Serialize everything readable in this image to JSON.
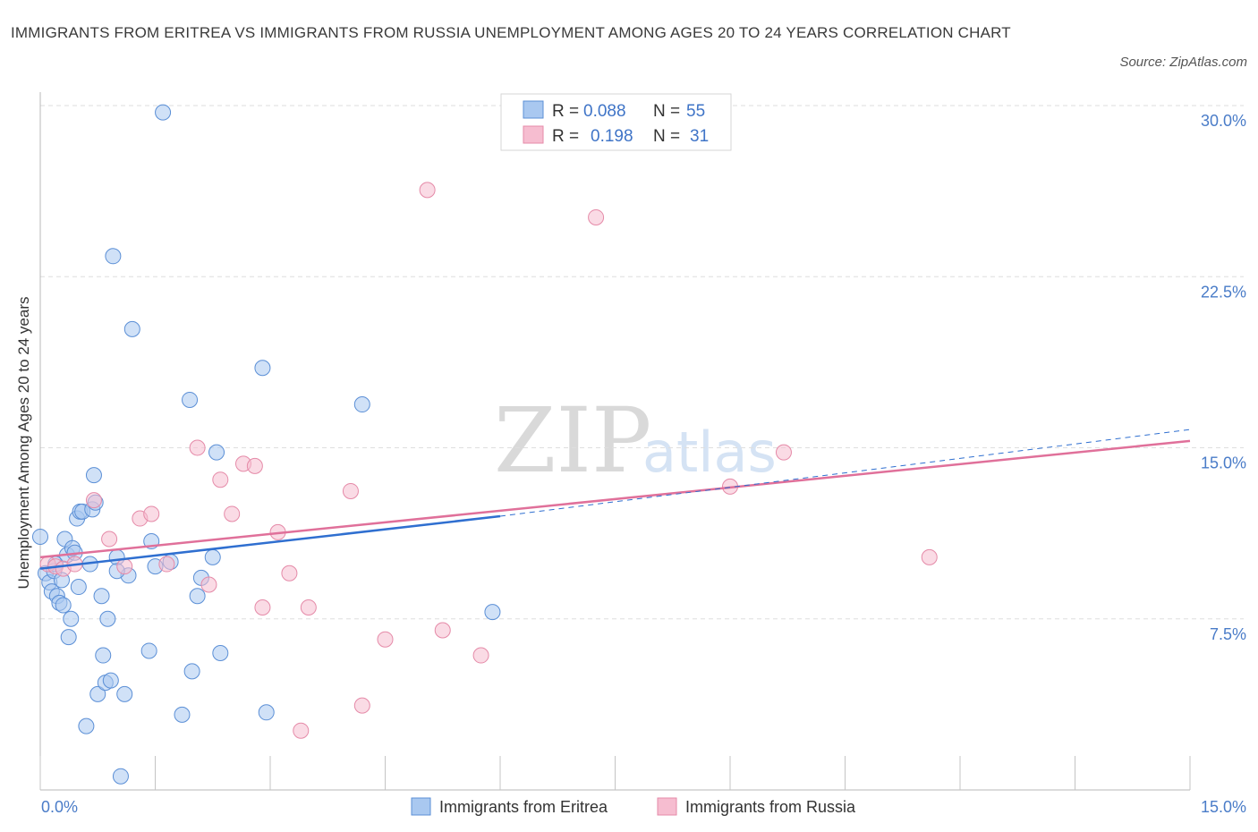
{
  "title": "IMMIGRANTS FROM ERITREA VS IMMIGRANTS FROM RUSSIA UNEMPLOYMENT AMONG AGES 20 TO 24 YEARS CORRELATION CHART",
  "source": "Source: ZipAtlas.com",
  "watermark": {
    "zip": "ZIP",
    "atlas": "atlas"
  },
  "legend": {
    "r_label": "R =",
    "n_label": "N =",
    "rows": [
      {
        "r": "0.088",
        "n": "55",
        "color": "#a9c8f0"
      },
      {
        "r": "0.198",
        "n": "31",
        "color": "#f6bdd0"
      }
    ]
  },
  "colors": {
    "eritrea_fill": "#a9c8f0",
    "eritrea_stroke": "#5b8fd6",
    "eritrea_line": "#2f6fd0",
    "russia_fill": "#f6bdd0",
    "russia_stroke": "#e58aa8",
    "russia_line": "#e0709a",
    "grid": "#dedede",
    "axis_text": "#4a7cc8"
  },
  "chart_data": {
    "type": "scatter",
    "title": "IMMIGRANTS FROM ERITREA VS IMMIGRANTS FROM RUSSIA UNEMPLOYMENT AMONG AGES 20 TO 24 YEARS CORRELATION CHART",
    "xlabel": "",
    "ylabel": "Unemployment Among Ages 20 to 24 years",
    "xlim": [
      0,
      15
    ],
    "ylim": [
      0,
      30
    ],
    "x_tick_labels": [
      "0.0%",
      "15.0%"
    ],
    "y_ticks": [
      7.5,
      15,
      22.5,
      30
    ],
    "y_tick_labels": [
      "7.5%",
      "15.0%",
      "22.5%",
      "30.0%"
    ],
    "grid": true,
    "series": [
      {
        "name": "Immigrants from Eritrea",
        "r": 0.088,
        "n": 55,
        "points": [
          [
            0.0,
            11.1
          ],
          [
            0.07,
            9.5
          ],
          [
            0.12,
            9.1
          ],
          [
            0.15,
            8.7
          ],
          [
            0.18,
            9.6
          ],
          [
            0.2,
            9.9
          ],
          [
            0.22,
            8.5
          ],
          [
            0.25,
            8.2
          ],
          [
            0.28,
            9.2
          ],
          [
            0.3,
            8.1
          ],
          [
            0.32,
            11.0
          ],
          [
            0.35,
            10.3
          ],
          [
            0.37,
            6.7
          ],
          [
            0.4,
            7.5
          ],
          [
            0.42,
            10.6
          ],
          [
            0.45,
            10.4
          ],
          [
            0.48,
            11.9
          ],
          [
            0.5,
            8.9
          ],
          [
            0.52,
            12.2
          ],
          [
            0.55,
            12.2
          ],
          [
            0.6,
            2.8
          ],
          [
            0.65,
            9.9
          ],
          [
            0.68,
            12.3
          ],
          [
            0.7,
            13.8
          ],
          [
            0.72,
            12.6
          ],
          [
            0.75,
            4.2
          ],
          [
            0.8,
            8.5
          ],
          [
            0.82,
            5.9
          ],
          [
            0.85,
            4.7
          ],
          [
            0.88,
            7.5
          ],
          [
            0.92,
            4.8
          ],
          [
            1.0,
            10.2
          ],
          [
            1.05,
            0.6
          ],
          [
            1.1,
            4.2
          ],
          [
            1.2,
            20.2
          ],
          [
            1.42,
            6.1
          ],
          [
            1.45,
            10.9
          ],
          [
            1.5,
            9.8
          ],
          [
            1.6,
            29.7
          ],
          [
            1.85,
            3.3
          ],
          [
            0.95,
            23.4
          ],
          [
            1.15,
            9.4
          ],
          [
            1.7,
            10.0
          ],
          [
            1.98,
            5.2
          ],
          [
            2.05,
            8.5
          ],
          [
            2.1,
            9.3
          ],
          [
            2.25,
            10.2
          ],
          [
            2.3,
            14.8
          ],
          [
            2.35,
            6.0
          ],
          [
            2.9,
            18.5
          ],
          [
            2.95,
            3.4
          ],
          [
            1.0,
            9.6
          ],
          [
            4.2,
            16.9
          ],
          [
            5.9,
            7.8
          ],
          [
            1.95,
            17.1
          ]
        ]
      },
      {
        "name": "Immigrants from Russia",
        "r": 0.198,
        "n": 31,
        "points": [
          [
            0.1,
            9.9
          ],
          [
            0.2,
            9.8
          ],
          [
            0.3,
            9.7
          ],
          [
            0.45,
            9.9
          ],
          [
            0.7,
            12.7
          ],
          [
            0.9,
            11.0
          ],
          [
            1.1,
            9.8
          ],
          [
            1.3,
            11.9
          ],
          [
            1.45,
            12.1
          ],
          [
            1.65,
            9.9
          ],
          [
            2.05,
            15.0
          ],
          [
            2.2,
            9.0
          ],
          [
            2.35,
            13.6
          ],
          [
            2.5,
            12.1
          ],
          [
            2.65,
            14.3
          ],
          [
            2.8,
            14.2
          ],
          [
            2.9,
            8.0
          ],
          [
            3.1,
            11.3
          ],
          [
            3.25,
            9.5
          ],
          [
            3.4,
            2.6
          ],
          [
            3.5,
            8.0
          ],
          [
            4.05,
            13.1
          ],
          [
            4.2,
            3.7
          ],
          [
            4.5,
            6.6
          ],
          [
            5.05,
            26.3
          ],
          [
            5.25,
            7.0
          ],
          [
            5.75,
            5.9
          ],
          [
            7.25,
            25.1
          ],
          [
            9.0,
            13.3
          ],
          [
            9.7,
            14.8
          ],
          [
            11.6,
            10.2
          ]
        ]
      }
    ],
    "trend_lines": [
      {
        "series": "Immigrants from Eritrea",
        "x": [
          0.0,
          6.0
        ],
        "y": [
          9.7,
          12.0
        ],
        "dashed_extension_to": [
          15.0,
          15.8
        ]
      },
      {
        "series": "Immigrants from Russia",
        "x": [
          0.0,
          15.0
        ],
        "y": [
          10.2,
          15.3
        ]
      }
    ],
    "legend_position": "top-center"
  }
}
